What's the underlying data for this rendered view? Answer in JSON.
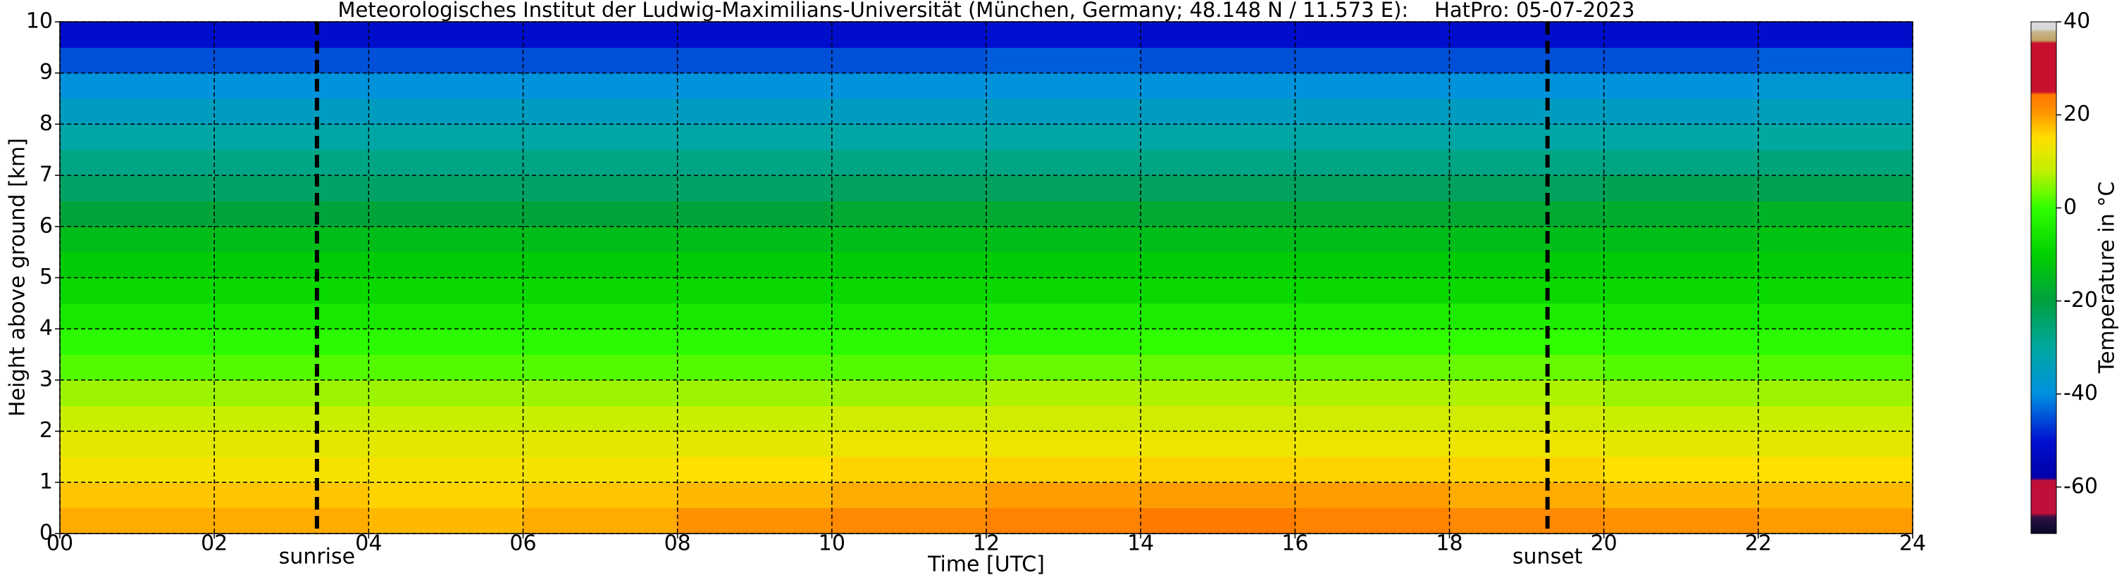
{
  "chart_data": {
    "type": "heatmap",
    "title": "Meteorologisches Institut der Ludwig-Maximilians-Universität (München, Germany; 48.148 N / 11.573 E):    HatPro: 05-07-2023",
    "x_label": "Time [UTC]",
    "y_label": "Height above ground [km]",
    "colorbar_label": "Temperature in °C",
    "xlim": [
      0,
      24
    ],
    "xticks": [
      {
        "value": 0,
        "label": "00"
      },
      {
        "value": 2,
        "label": "02"
      },
      {
        "value": 4,
        "label": "04"
      },
      {
        "value": 6,
        "label": "06"
      },
      {
        "value": 8,
        "label": "08"
      },
      {
        "value": 10,
        "label": "10"
      },
      {
        "value": 12,
        "label": "12"
      },
      {
        "value": 14,
        "label": "14"
      },
      {
        "value": 16,
        "label": "16"
      },
      {
        "value": 18,
        "label": "18"
      },
      {
        "value": 20,
        "label": "20"
      },
      {
        "value": 22,
        "label": "22"
      },
      {
        "value": 24,
        "label": "24"
      }
    ],
    "ylim": [
      0,
      10
    ],
    "yticks": [
      0,
      1,
      2,
      3,
      4,
      5,
      6,
      7,
      8,
      9,
      10
    ],
    "grid": true,
    "clim": [
      -70,
      40
    ],
    "cticks": [
      -60,
      -40,
      -20,
      0,
      20,
      40
    ],
    "colormap": [
      [
        -70,
        "#08082a"
      ],
      [
        -66.5,
        "#2a1040"
      ],
      [
        -65.5,
        "#c0103a"
      ],
      [
        -58.5,
        "#c0103a"
      ],
      [
        -58,
        "#0000a8"
      ],
      [
        -50,
        "#0010d0"
      ],
      [
        -40,
        "#0090e0"
      ],
      [
        -30,
        "#00a8a0"
      ],
      [
        -20,
        "#00a040"
      ],
      [
        -10,
        "#00d000"
      ],
      [
        0,
        "#30ff00"
      ],
      [
        8,
        "#c0f000"
      ],
      [
        15,
        "#ffe000"
      ],
      [
        21,
        "#ff9000"
      ],
      [
        24.5,
        "#ff7800"
      ],
      [
        25,
        "#c8102e"
      ],
      [
        35.5,
        "#c8102e"
      ],
      [
        36,
        "#c0a060"
      ],
      [
        38,
        "#c8b890"
      ],
      [
        38.5,
        "#d8d8d8"
      ],
      [
        40,
        "#d8d8d8"
      ]
    ],
    "x_edges": [
      0,
      2,
      4,
      6,
      8,
      10,
      12,
      14,
      16,
      18,
      20,
      22,
      24
    ],
    "y_edges": [
      0,
      0.5,
      1,
      1.5,
      2,
      2.5,
      3,
      3.5,
      4,
      4.5,
      5,
      5.5,
      6,
      6.5,
      7,
      7.5,
      8,
      8.5,
      9,
      9.5,
      10
    ],
    "z": [
      [
        19,
        19,
        18,
        19,
        21,
        22,
        23,
        24,
        23,
        22,
        21,
        20
      ],
      [
        17,
        17,
        16,
        17,
        18,
        19,
        20,
        20,
        20,
        19,
        18,
        18
      ],
      [
        14,
        14,
        14,
        14,
        15,
        16,
        16,
        16,
        16,
        16,
        15,
        15
      ],
      [
        12,
        12,
        12,
        12,
        12,
        13,
        13,
        13,
        13,
        13,
        12,
        12
      ],
      [
        9,
        9,
        9,
        9,
        9,
        10,
        10,
        10,
        10,
        10,
        9,
        9
      ],
      [
        6,
        6,
        6,
        6,
        6,
        6,
        7,
        7,
        7,
        7,
        6,
        6
      ],
      [
        2,
        2,
        2,
        2,
        2,
        2,
        3,
        3,
        3,
        3,
        2,
        2
      ],
      [
        -1,
        -1,
        -1,
        -1,
        -1,
        -1,
        -1,
        0,
        0,
        0,
        -1,
        -1
      ],
      [
        -5,
        -5,
        -5,
        -5,
        -5,
        -5,
        -4,
        -4,
        -4,
        -4,
        -5,
        -5
      ],
      [
        -8,
        -8,
        -8,
        -8,
        -8,
        -8,
        -8,
        -8,
        -8,
        -8,
        -8,
        -8
      ],
      [
        -11,
        -11,
        -11,
        -11,
        -11,
        -11,
        -11,
        -11,
        -11,
        -11,
        -11,
        -11
      ],
      [
        -14,
        -14,
        -14,
        -14,
        -14,
        -14,
        -14,
        -14,
        -14,
        -14,
        -14,
        -13
      ],
      [
        -19,
        -19,
        -19,
        -19,
        -19,
        -18,
        -18,
        -18,
        -18,
        -18,
        -17,
        -16
      ],
      [
        -24,
        -24,
        -24,
        -24,
        -24,
        -23,
        -23,
        -23,
        -23,
        -23,
        -22,
        -22
      ],
      [
        -27,
        -27,
        -27,
        -27,
        -27,
        -27,
        -27,
        -27,
        -27,
        -27,
        -27,
        -26
      ],
      [
        -31,
        -31,
        -31,
        -31,
        -31,
        -31,
        -31,
        -31,
        -31,
        -31,
        -31,
        -30
      ],
      [
        -35,
        -35,
        -35,
        -35,
        -35,
        -35,
        -35,
        -35,
        -35,
        -35,
        -35,
        -34
      ],
      [
        -39,
        -39,
        -39,
        -39,
        -39,
        -39,
        -39,
        -39,
        -39,
        -39,
        -39,
        -38
      ],
      [
        -45,
        -45,
        -45,
        -45,
        -45,
        -45,
        -44,
        -45,
        -45,
        -45,
        -45,
        -44
      ],
      [
        -51,
        -51,
        -51,
        -51,
        -51,
        -51,
        -50,
        -51,
        -51,
        -51,
        -51,
        -51
      ]
    ],
    "annotations": [
      {
        "x": 3.33,
        "label": "sunrise"
      },
      {
        "x": 19.27,
        "label": "sunset"
      }
    ]
  }
}
